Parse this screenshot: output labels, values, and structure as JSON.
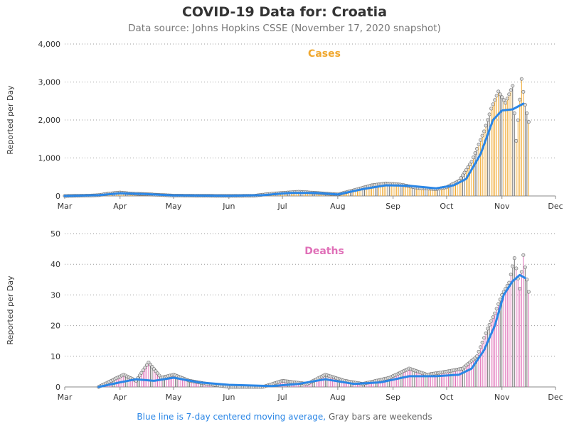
{
  "title": "COVID-19 Data for: Croatia",
  "subtitle": "Data source: Johns Hopkins CSSE (November 17, 2020 snapshot)",
  "footnote": {
    "blue_text": "Blue line is 7-day centered moving average,",
    "gray_text": "Gray bars are weekends"
  },
  "colors": {
    "cases": "#f0a830",
    "deaths": "#e070b8",
    "weekend": "#777777",
    "moving_average": "#2a86e6",
    "grid": "#999999"
  },
  "chart_data": [
    {
      "type": "bar",
      "panel": "Cases",
      "title": "Cases",
      "ylabel": "Reported per Day",
      "ylim": [
        0,
        4000
      ],
      "yticks": [
        0,
        1000,
        2000,
        3000,
        4000
      ],
      "ytick_labels": [
        "0",
        "1,000",
        "2,000",
        "3,000",
        "4,000"
      ],
      "x_start": "2020-03-01",
      "x_end": "2020-12-01",
      "xtick_labels": [
        "Mar",
        "Apr",
        "May",
        "Jun",
        "Jul",
        "Aug",
        "Sep",
        "Oct",
        "Nov",
        "Dec"
      ],
      "grid": "horizontal dotted",
      "series": [
        {
          "name": "Cases",
          "points": [
            {
              "date": "2020-03-01",
              "value": 0
            },
            {
              "date": "2020-03-15",
              "value": 10
            },
            {
              "date": "2020-03-20",
              "value": 20
            },
            {
              "date": "2020-03-25",
              "value": 60
            },
            {
              "date": "2020-04-01",
              "value": 90
            },
            {
              "date": "2020-04-08",
              "value": 60
            },
            {
              "date": "2020-04-15",
              "value": 50
            },
            {
              "date": "2020-04-22",
              "value": 30
            },
            {
              "date": "2020-05-01",
              "value": 10
            },
            {
              "date": "2020-05-15",
              "value": 5
            },
            {
              "date": "2020-06-01",
              "value": 2
            },
            {
              "date": "2020-06-15",
              "value": 5
            },
            {
              "date": "2020-06-25",
              "value": 60
            },
            {
              "date": "2020-07-01",
              "value": 80
            },
            {
              "date": "2020-07-10",
              "value": 110
            },
            {
              "date": "2020-07-20",
              "value": 80
            },
            {
              "date": "2020-08-01",
              "value": 40
            },
            {
              "date": "2020-08-10",
              "value": 150
            },
            {
              "date": "2020-08-20",
              "value": 280
            },
            {
              "date": "2020-08-28",
              "value": 330
            },
            {
              "date": "2020-09-05",
              "value": 300
            },
            {
              "date": "2020-09-15",
              "value": 210
            },
            {
              "date": "2020-09-25",
              "value": 180
            },
            {
              "date": "2020-10-01",
              "value": 230
            },
            {
              "date": "2020-10-08",
              "value": 400
            },
            {
              "date": "2020-10-15",
              "value": 900
            },
            {
              "date": "2020-10-22",
              "value": 1700
            },
            {
              "date": "2020-10-26",
              "value": 2300
            },
            {
              "date": "2020-10-30",
              "value": 2750
            },
            {
              "date": "2020-11-03",
              "value": 2450
            },
            {
              "date": "2020-11-07",
              "value": 2900
            },
            {
              "date": "2020-11-09",
              "value": 1450
            },
            {
              "date": "2020-11-12",
              "value": 3080
            },
            {
              "date": "2020-11-14",
              "value": 2400
            },
            {
              "date": "2020-11-16",
              "value": 1950
            }
          ]
        },
        {
          "name": "Blue line is 7-day centered moving average",
          "points": [
            {
              "date": "2020-03-01",
              "value": 0
            },
            {
              "date": "2020-03-20",
              "value": 20
            },
            {
              "date": "2020-04-01",
              "value": 70
            },
            {
              "date": "2020-04-15",
              "value": 50
            },
            {
              "date": "2020-05-01",
              "value": 15
            },
            {
              "date": "2020-06-01",
              "value": 3
            },
            {
              "date": "2020-06-20",
              "value": 20
            },
            {
              "date": "2020-07-05",
              "value": 80
            },
            {
              "date": "2020-07-20",
              "value": 80
            },
            {
              "date": "2020-08-01",
              "value": 40
            },
            {
              "date": "2020-08-15",
              "value": 180
            },
            {
              "date": "2020-08-28",
              "value": 280
            },
            {
              "date": "2020-09-10",
              "value": 270
            },
            {
              "date": "2020-09-25",
              "value": 200
            },
            {
              "date": "2020-10-05",
              "value": 280
            },
            {
              "date": "2020-10-12",
              "value": 450
            },
            {
              "date": "2020-10-20",
              "value": 1100
            },
            {
              "date": "2020-10-27",
              "value": 2000
            },
            {
              "date": "2020-11-01",
              "value": 2250
            },
            {
              "date": "2020-11-07",
              "value": 2280
            },
            {
              "date": "2020-11-13",
              "value": 2430
            }
          ]
        }
      ]
    },
    {
      "type": "bar",
      "panel": "Deaths",
      "title": "Deaths",
      "ylabel": "Reported per Day",
      "ylim": [
        0,
        50
      ],
      "yticks": [
        0,
        10,
        20,
        30,
        40,
        50
      ],
      "ytick_labels": [
        "0",
        "10",
        "20",
        "30",
        "40",
        "50"
      ],
      "x_start": "2020-03-01",
      "x_end": "2020-12-01",
      "xtick_labels": [
        "Mar",
        "Apr",
        "May",
        "Jun",
        "Jul",
        "Aug",
        "Sep",
        "Oct",
        "Nov",
        "Dec"
      ],
      "grid": "horizontal dotted",
      "series": [
        {
          "name": "Deaths",
          "points": [
            {
              "date": "2020-03-20",
              "value": 0
            },
            {
              "date": "2020-03-27",
              "value": 2
            },
            {
              "date": "2020-04-03",
              "value": 4
            },
            {
              "date": "2020-04-10",
              "value": 2
            },
            {
              "date": "2020-04-17",
              "value": 8
            },
            {
              "date": "2020-04-24",
              "value": 3
            },
            {
              "date": "2020-05-01",
              "value": 4
            },
            {
              "date": "2020-05-10",
              "value": 2
            },
            {
              "date": "2020-05-20",
              "value": 1
            },
            {
              "date": "2020-06-01",
              "value": 0
            },
            {
              "date": "2020-06-20",
              "value": 0
            },
            {
              "date": "2020-07-01",
              "value": 2
            },
            {
              "date": "2020-07-15",
              "value": 1
            },
            {
              "date": "2020-07-25",
              "value": 4
            },
            {
              "date": "2020-08-05",
              "value": 2
            },
            {
              "date": "2020-08-15",
              "value": 1
            },
            {
              "date": "2020-08-30",
              "value": 3
            },
            {
              "date": "2020-09-10",
              "value": 6
            },
            {
              "date": "2020-09-20",
              "value": 4
            },
            {
              "date": "2020-10-01",
              "value": 5
            },
            {
              "date": "2020-10-10",
              "value": 6
            },
            {
              "date": "2020-10-18",
              "value": 10
            },
            {
              "date": "2020-10-24",
              "value": 19
            },
            {
              "date": "2020-10-28",
              "value": 24
            },
            {
              "date": "2020-11-01",
              "value": 30
            },
            {
              "date": "2020-11-05",
              "value": 34
            },
            {
              "date": "2020-11-08",
              "value": 42
            },
            {
              "date": "2020-11-11",
              "value": 32
            },
            {
              "date": "2020-11-13",
              "value": 43
            },
            {
              "date": "2020-11-16",
              "value": 31
            }
          ]
        },
        {
          "name": "Blue line is 7-day centered moving average",
          "points": [
            {
              "date": "2020-03-20",
              "value": 0
            },
            {
              "date": "2020-04-01",
              "value": 1.5
            },
            {
              "date": "2020-04-10",
              "value": 2.5
            },
            {
              "date": "2020-04-20",
              "value": 2.0
            },
            {
              "date": "2020-05-01",
              "value": 3.0
            },
            {
              "date": "2020-05-15",
              "value": 1.5
            },
            {
              "date": "2020-06-01",
              "value": 0.7
            },
            {
              "date": "2020-06-25",
              "value": 0.3
            },
            {
              "date": "2020-07-10",
              "value": 1.0
            },
            {
              "date": "2020-07-25",
              "value": 2.5
            },
            {
              "date": "2020-08-10",
              "value": 1.0
            },
            {
              "date": "2020-08-25",
              "value": 1.5
            },
            {
              "date": "2020-09-10",
              "value": 3.5
            },
            {
              "date": "2020-09-25",
              "value": 3.5
            },
            {
              "date": "2020-10-08",
              "value": 4.0
            },
            {
              "date": "2020-10-15",
              "value": 6.0
            },
            {
              "date": "2020-10-22",
              "value": 12.0
            },
            {
              "date": "2020-10-28",
              "value": 20.0
            },
            {
              "date": "2020-11-02",
              "value": 30.0
            },
            {
              "date": "2020-11-07",
              "value": 34.5
            },
            {
              "date": "2020-11-11",
              "value": 36.5
            },
            {
              "date": "2020-11-14",
              "value": 35.5
            }
          ]
        }
      ]
    }
  ]
}
